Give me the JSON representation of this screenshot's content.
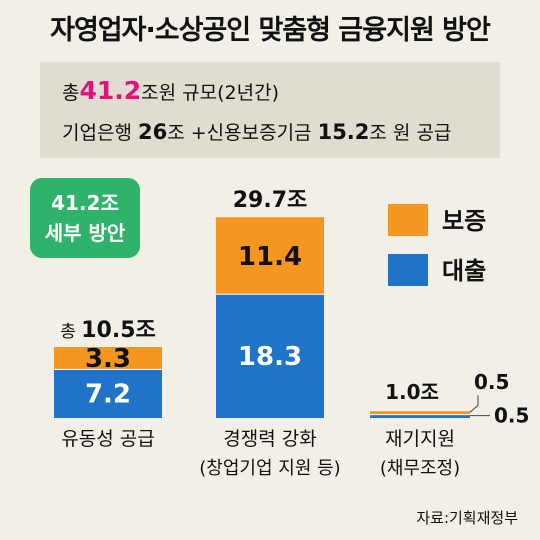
{
  "title": "자영업자·소상공인 맞춤형 금융지원 방안",
  "summary": {
    "line1_prefix": "총",
    "line1_total": "41.2",
    "line1_suffix": "조원 규모(2년간)",
    "line2_a": "기업은행 ",
    "line2_a_val": "26",
    "line2_b": "조 +신용보증기금 ",
    "line2_b_val": "15.2",
    "line2_c": "조 원 공급"
  },
  "badge": {
    "line1": "41.2조",
    "line2": "세부 방안"
  },
  "chart_data": {
    "type": "bar",
    "stacked": true,
    "categories": [
      {
        "line1": "유동성 공급",
        "line2": ""
      },
      {
        "line1": "경쟁력 강화",
        "line2": "(창업기업 지원 등)"
      },
      {
        "line1": "재기지원",
        "line2": "(채무조정)"
      }
    ],
    "series": [
      {
        "name": "대출",
        "values": [
          7.2,
          18.3,
          0.5
        ],
        "labels": [
          "7.2",
          "18.3",
          "0.5"
        ],
        "color": "#1f73c8"
      },
      {
        "name": "보증",
        "values": [
          3.3,
          11.4,
          0.5
        ],
        "labels": [
          "3.3",
          "11.4",
          "0.5"
        ],
        "color": "#f4961f"
      }
    ],
    "totals": [
      {
        "prefix": "총 ",
        "value": "10.5조"
      },
      {
        "prefix": "",
        "value": "29.7조"
      },
      {
        "prefix": "",
        "value": "1.0조"
      }
    ],
    "legend_position": "top-right"
  },
  "source": "자료:기획재정부"
}
